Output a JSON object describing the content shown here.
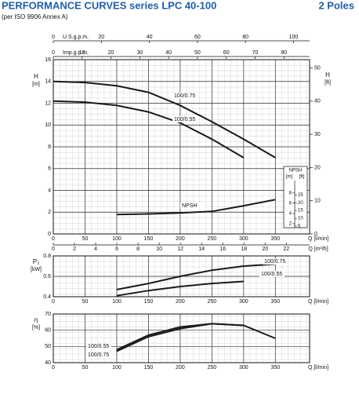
{
  "header": {
    "title": "PERFORMANCE CURVES series LPC 40-100",
    "poles": "2 Poles",
    "subtitle": "(per ISO 9906 Annex A)"
  },
  "chart_data": [
    {
      "type": "line",
      "y_label": "H",
      "y_unit": "[m]",
      "ylim": [
        0,
        16
      ],
      "yticks": [
        0,
        2,
        4,
        6,
        8,
        10,
        12,
        14,
        16
      ],
      "y2_label": "H",
      "y2_unit": "[ft]",
      "y2lim": [
        0,
        52.49
      ],
      "y2ticks": [
        0,
        10,
        20,
        30,
        40,
        50
      ],
      "xlim": [
        0,
        404
      ],
      "xticks": [
        0,
        50,
        100,
        150,
        200,
        250,
        300,
        350
      ],
      "x_label": "Q [l/min]",
      "x2_label": "Q [m³/h]",
      "x2lim": [
        0,
        24.2
      ],
      "x2ticks": [
        0,
        2,
        4,
        6,
        8,
        10,
        12,
        14,
        16,
        18,
        20,
        22
      ],
      "top_axes": [
        {
          "label": "U.S.g.p.m.",
          "lim": [
            0,
            106.7
          ],
          "ticks": [
            0,
            20,
            40,
            60,
            80,
            100
          ]
        },
        {
          "label": "Imp.g.p.m.",
          "lim": [
            0,
            88.9
          ],
          "ticks": [
            0,
            10,
            20,
            30,
            40,
            50,
            60,
            70,
            80
          ]
        }
      ],
      "npsh_axis": {
        "title": "NPSH",
        "m_unit": "[m]",
        "ft_unit": "[ft]",
        "m_lim": [
          0,
          34
        ],
        "m_ticks": [
          2,
          4,
          6,
          8
        ],
        "ft_lim": [
          0,
          111.5
        ],
        "ft_ticks": [
          5,
          10,
          15,
          20,
          25
        ]
      },
      "grid": true,
      "series": [
        {
          "name": "100/0.75",
          "color": "#1a1a1a",
          "x": [
            0,
            50,
            100,
            150,
            200,
            250,
            300,
            350
          ],
          "values": [
            14,
            13.9,
            13.6,
            13,
            11.8,
            10.3,
            8.7,
            7
          ]
        },
        {
          "name": "100/0.55",
          "color": "#1a1a1a",
          "x": [
            0,
            50,
            100,
            150,
            200,
            250,
            300
          ],
          "values": [
            12.2,
            12.1,
            11.8,
            11.2,
            10.2,
            8.7,
            7
          ]
        },
        {
          "name": "NPSH",
          "color": "#1a1a1a",
          "axis": "npsh",
          "x": [
            100,
            150,
            200,
            250,
            300,
            350
          ],
          "values": [
            3.8,
            3.9,
            4.1,
            4.4,
            5.5,
            6.7
          ]
        }
      ]
    },
    {
      "type": "line",
      "y_label": "P₂",
      "y_unit": "[kW]",
      "ylim": [
        0.4,
        0.8
      ],
      "yticks": [
        0.4,
        0.6,
        0.8
      ],
      "xlim": [
        0,
        404
      ],
      "xticks": [
        0,
        50,
        100,
        150,
        200,
        250,
        300,
        350
      ],
      "x_label": "Q [l/min]",
      "grid": true,
      "series": [
        {
          "name": "100/0.75",
          "color": "#1a1a1a",
          "x": [
            100,
            150,
            200,
            250,
            300,
            350
          ],
          "values": [
            0.47,
            0.53,
            0.6,
            0.66,
            0.7,
            0.72
          ]
        },
        {
          "name": "100/0.55",
          "color": "#1a1a1a",
          "x": [
            100,
            150,
            200,
            250,
            300
          ],
          "values": [
            0.41,
            0.46,
            0.5,
            0.53,
            0.55
          ]
        }
      ]
    },
    {
      "type": "line",
      "y_label": "η",
      "y_unit": "[%]",
      "ylim": [
        40,
        70
      ],
      "yticks": [
        40,
        50,
        60,
        70
      ],
      "xlim": [
        0,
        404
      ],
      "xticks": [
        0,
        50,
        100,
        150,
        200,
        250,
        300,
        350
      ],
      "x_label": "Q [l/min]",
      "grid": true,
      "series": [
        {
          "name": "100/0.55",
          "color": "#1a1a1a",
          "x": [
            100,
            150,
            200,
            250,
            300
          ],
          "values": [
            48,
            57,
            62,
            64,
            63
          ]
        },
        {
          "name": "100/0.75",
          "color": "#1a1a1a",
          "x": [
            100,
            150,
            200,
            250,
            300,
            350
          ],
          "values": [
            47,
            56,
            61,
            64,
            63,
            55
          ]
        }
      ]
    }
  ]
}
